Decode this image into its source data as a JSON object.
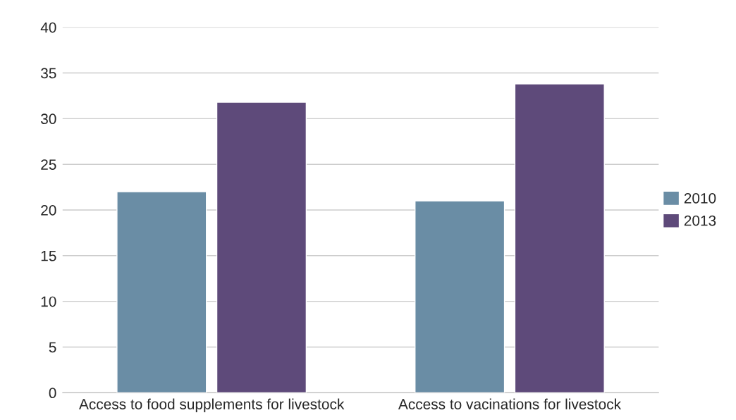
{
  "chart_data": {
    "type": "bar",
    "categories": [
      "Access to food supplements for livestock",
      "Access to vacinations for livestock"
    ],
    "series": [
      {
        "name": "2010",
        "color": "#6a8da5",
        "values": [
          22,
          21
        ]
      },
      {
        "name": "2013",
        "color": "#5e4a7a",
        "values": [
          31.8,
          33.8
        ]
      }
    ],
    "ylim": [
      0,
      40
    ],
    "yticks": [
      0,
      5,
      10,
      15,
      20,
      25,
      30,
      35,
      40
    ],
    "grid": "y",
    "legend": "right"
  }
}
